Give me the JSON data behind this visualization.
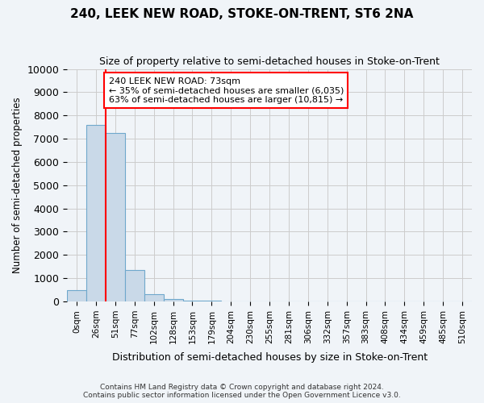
{
  "title": "240, LEEK NEW ROAD, STOKE-ON-TRENT, ST6 2NA",
  "subtitle": "Size of property relative to semi-detached houses in Stoke-on-Trent",
  "xlabel": "Distribution of semi-detached houses by size in Stoke-on-Trent",
  "ylabel": "Number of semi-detached properties",
  "footer_line1": "Contains HM Land Registry data © Crown copyright and database right 2024.",
  "footer_line2": "Contains public sector information licensed under the Open Government Licence v3.0.",
  "bin_labels": [
    "0sqm",
    "26sqm",
    "51sqm",
    "77sqm",
    "102sqm",
    "128sqm",
    "153sqm",
    "179sqm",
    "204sqm",
    "230sqm",
    "255sqm",
    "281sqm",
    "306sqm",
    "332sqm",
    "357sqm",
    "383sqm",
    "408sqm",
    "434sqm",
    "459sqm",
    "485sqm",
    "510sqm"
  ],
  "bar_values": [
    500,
    7600,
    7250,
    1350,
    300,
    100,
    50,
    20,
    0,
    0,
    0,
    0,
    0,
    0,
    0,
    0,
    0,
    0,
    0,
    0,
    0
  ],
  "property_bin_index": 2,
  "property_label": "240 LEEK NEW ROAD: 73sqm",
  "pct_smaller": 35,
  "n_smaller": 6035,
  "pct_larger": 63,
  "n_larger": 10815,
  "bar_color": "#c9d9e8",
  "bar_edge_color": "#6fa8cc",
  "vline_color": "red",
  "ylim": [
    0,
    10000
  ],
  "yticks": [
    0,
    1000,
    2000,
    3000,
    4000,
    5000,
    6000,
    7000,
    8000,
    9000,
    10000
  ],
  "grid_color": "#cccccc",
  "bg_color": "#f0f4f8"
}
